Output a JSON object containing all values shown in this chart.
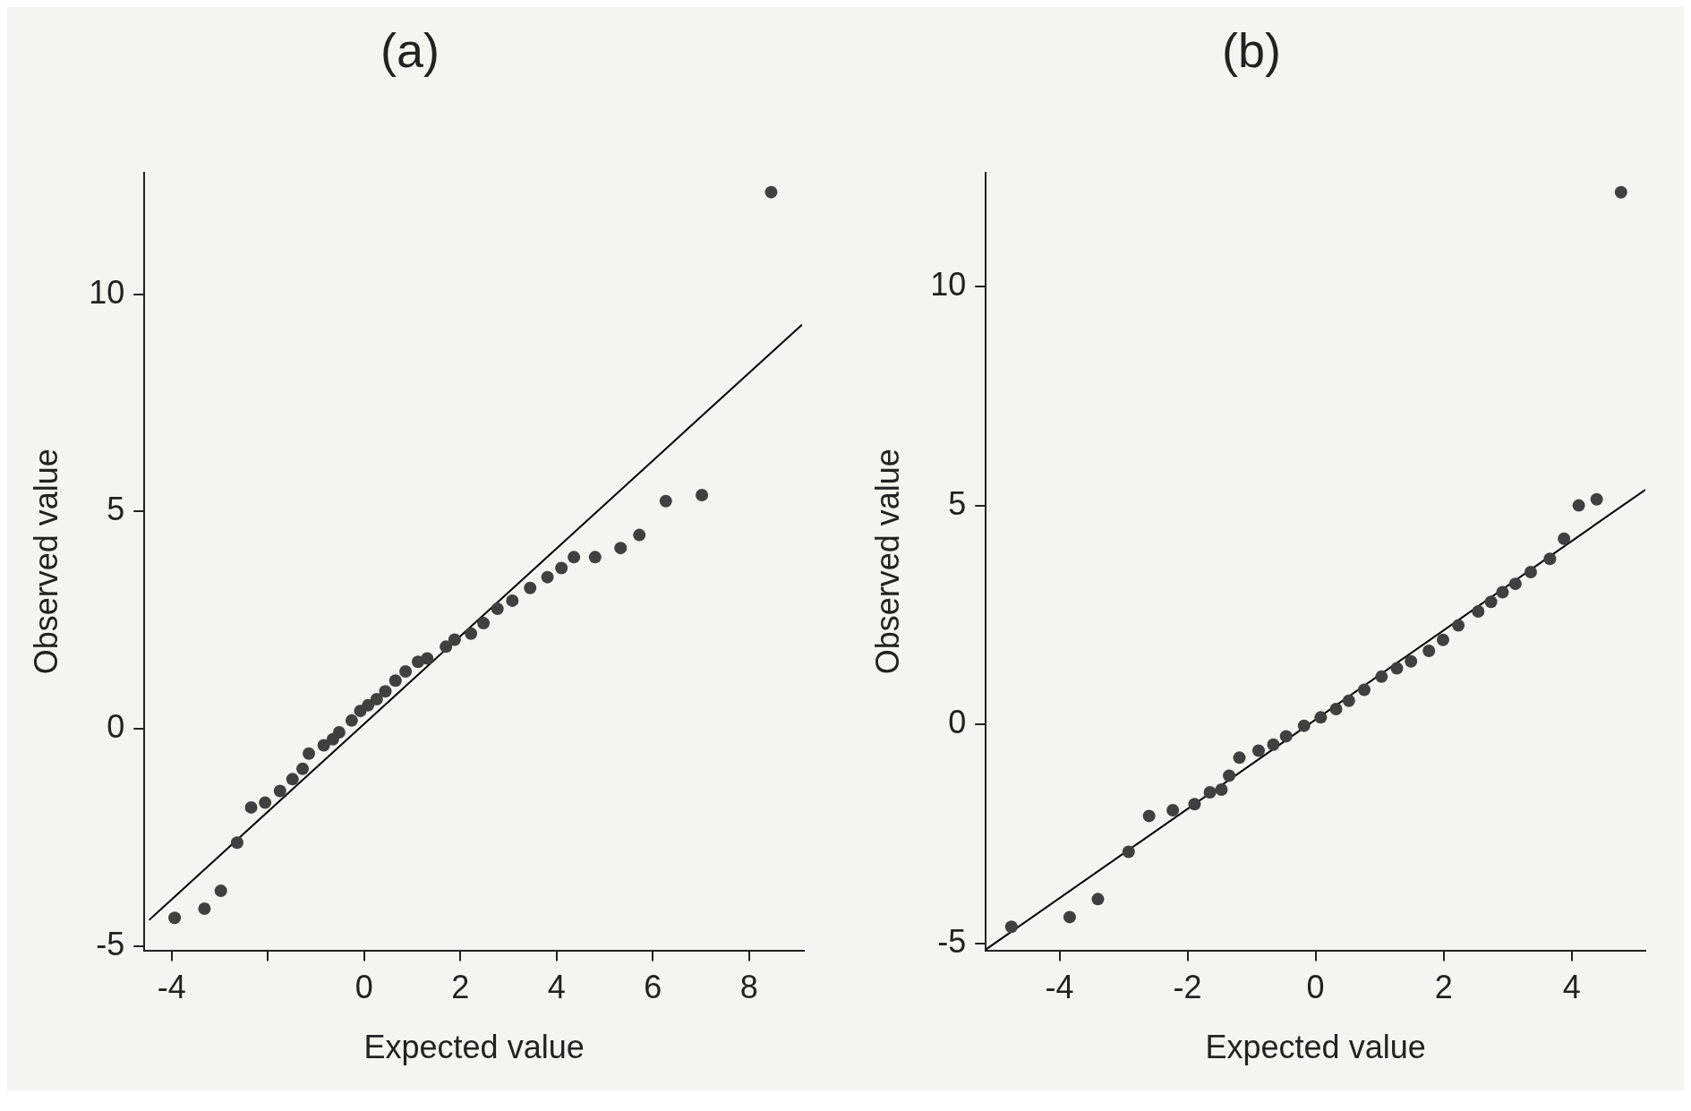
{
  "chart_data": [
    {
      "type": "scatter",
      "title": "(a)",
      "xlabel": "Expected value",
      "ylabel": "Observed value",
      "xlim": [
        -4.57,
        9.14
      ],
      "ylim": [
        -5.1,
        12.8
      ],
      "xticks": [
        -4,
        {
          "value": -2,
          "label": null
        },
        0,
        2,
        4,
        6,
        8
      ],
      "yticks": [
        -5,
        0,
        5,
        10
      ],
      "grid": false,
      "legend": false,
      "marker": "circle",
      "series": [
        {
          "color": "#404040",
          "x": [
            -3.94,
            -3.32,
            -2.98,
            -2.64,
            -2.35,
            -2.06,
            -1.75,
            -1.49,
            -1.28,
            -1.15,
            -0.84,
            -0.65,
            -0.52,
            -0.26,
            -0.08,
            0.08,
            0.26,
            0.44,
            0.65,
            0.86,
            1.12,
            1.31,
            1.7,
            1.88,
            2.22,
            2.48,
            2.77,
            3.08,
            3.45,
            3.81,
            4.1,
            4.36,
            4.8,
            5.33,
            5.72,
            6.27,
            7.02,
            8.46
          ],
          "values": [
            -4.35,
            -4.14,
            -3.73,
            -2.62,
            -1.81,
            -1.7,
            -1.43,
            -1.16,
            -0.92,
            -0.57,
            -0.38,
            -0.24,
            -0.08,
            0.19,
            0.41,
            0.54,
            0.68,
            0.86,
            1.11,
            1.32,
            1.54,
            1.62,
            1.89,
            2.05,
            2.19,
            2.43,
            2.76,
            2.95,
            3.24,
            3.49,
            3.7,
            3.95,
            3.95,
            4.16,
            4.46,
            5.24,
            5.38,
            12.35
          ]
        },
        {
          "type": "line",
          "marker": "none",
          "color": "#000000",
          "x": [
            -4.47,
            9.1
          ],
          "values": [
            -4.4,
            9.3
          ]
        }
      ]
    },
    {
      "type": "scatter",
      "title": "(b)",
      "xlabel": "Expected value",
      "ylabel": "Observed value",
      "xlim": [
        -5.15,
        5.15
      ],
      "ylim": [
        -5.16,
        12.6
      ],
      "xticks": [
        -4,
        -2,
        0,
        2,
        4
      ],
      "yticks": [
        -5,
        0,
        5,
        10
      ],
      "grid": false,
      "legend": false,
      "marker": "circle",
      "series": [
        {
          "color": "#404040",
          "x": [
            -4.75,
            -3.84,
            -3.4,
            -2.92,
            -2.6,
            -2.23,
            -1.89,
            -1.65,
            -1.47,
            -1.35,
            -1.19,
            -0.89,
            -0.66,
            -0.46,
            -0.18,
            0.08,
            0.32,
            0.52,
            0.76,
            1.03,
            1.27,
            1.49,
            1.77,
            1.99,
            2.23,
            2.54,
            2.74,
            2.92,
            3.12,
            3.36,
            3.66,
            3.88,
            4.11,
            4.39,
            4.77
          ],
          "values": [
            -4.62,
            -4.4,
            -3.99,
            -2.91,
            -2.09,
            -1.96,
            -1.82,
            -1.55,
            -1.49,
            -1.17,
            -0.76,
            -0.6,
            -0.46,
            -0.27,
            -0.03,
            0.16,
            0.35,
            0.54,
            0.79,
            1.09,
            1.28,
            1.44,
            1.68,
            1.93,
            2.26,
            2.58,
            2.8,
            3.02,
            3.21,
            3.48,
            3.78,
            4.24,
            5.0,
            5.14,
            12.15
          ]
        },
        {
          "type": "line",
          "marker": "none",
          "color": "#000000",
          "x": [
            -5.15,
            5.15
          ],
          "values": [
            -5.14,
            5.36
          ]
        }
      ]
    }
  ]
}
